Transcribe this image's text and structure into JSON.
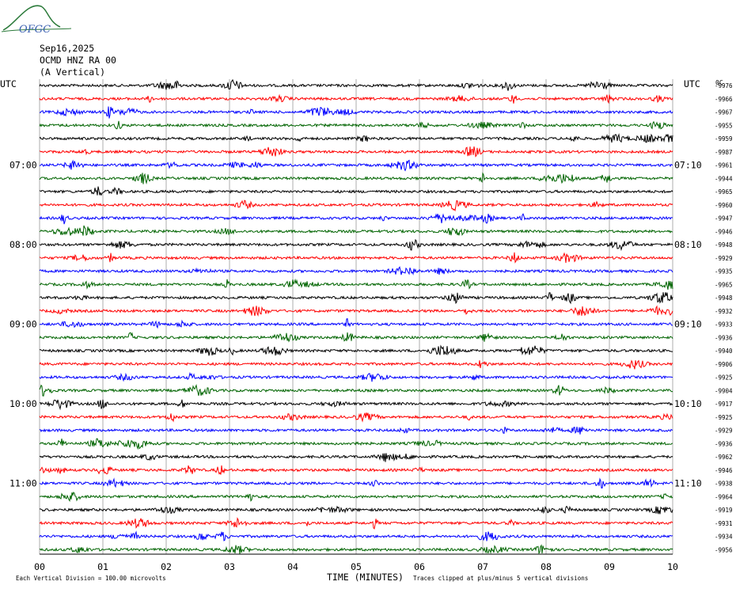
{
  "logo": {
    "text": "OFGC",
    "color": "#2b7a3a",
    "text_color": "#3a5fb0"
  },
  "header": {
    "date": "Sep16,2025",
    "station": "OCMD HNZ RA 00",
    "component": "(A Vertical)"
  },
  "chart_data": {
    "type": "line",
    "subtype": "helicorder",
    "left_axis_label": "UTC",
    "right_axis_label": "UTC",
    "left_hour_labels": [
      "07:00",
      "08:00",
      "09:00",
      "10:00",
      "11:00"
    ],
    "right_hour_labels": [
      "07:10",
      "08:10",
      "09:10",
      "10:10",
      "11:10"
    ],
    "right_top_label": "0C",
    "x_ticks": [
      "00",
      "01",
      "02",
      "03",
      "04",
      "05",
      "06",
      "07",
      "08",
      "09",
      "10"
    ],
    "xlabel": "TIME (MINUTES)",
    "xlim": [
      0,
      10
    ],
    "trace_colors": [
      "#000000",
      "#ff0000",
      "#0000ff",
      "#006400"
    ],
    "trace_offsets": [
      -9976,
      -9966,
      -9967,
      -9955,
      -9959,
      -9987,
      -9961,
      -9944,
      -9965,
      -9960,
      -9947,
      -9946,
      -9948,
      -9929,
      -9935,
      -9965,
      -9948,
      -9932,
      -9933,
      -9936,
      -9940,
      -9906,
      -9925,
      -9904,
      -9917,
      -9925,
      -9929,
      -9936,
      -9962,
      -9946,
      -9938,
      -9964,
      -9919,
      -9931,
      -9934,
      -9956
    ],
    "footer_left": "Each Vertical Division =  100.00 microvolts",
    "footer_right": "Traces clipped at plus/minus 5 vertical divisions",
    "grid": true
  }
}
